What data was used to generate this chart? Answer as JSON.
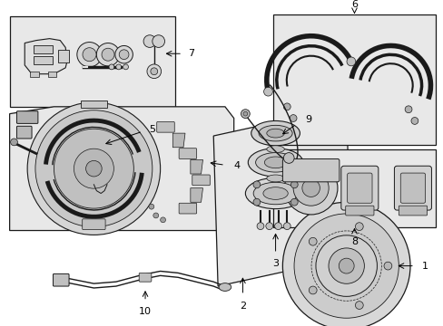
{
  "bg": "#ffffff",
  "lc": "#1a1a1a",
  "box_bg": "#e8e8e8",
  "fig_w": 4.89,
  "fig_h": 3.6,
  "dpi": 100
}
